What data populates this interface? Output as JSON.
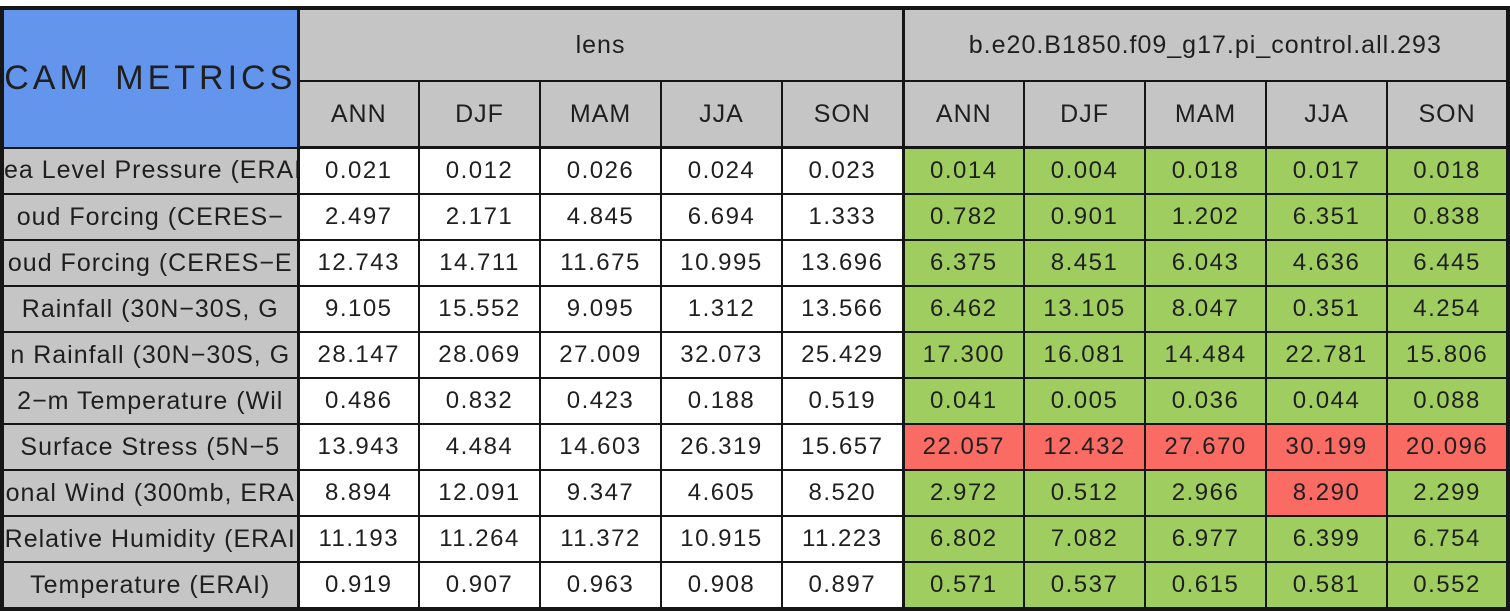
{
  "colors": {
    "title_bg": "#6495ED",
    "header_bg": "#C5C5C5",
    "better": "#9FCD60",
    "worse": "#FA6B63",
    "lens_bg": "#FFFFFF",
    "grid": "#161616"
  },
  "chart_data": {
    "type": "table",
    "title": "CAM METRICS",
    "column_groups": [
      "lens",
      "b.e20.B1850.f09_g17.pi_control.all.293"
    ],
    "seasons": [
      "ANN",
      "DJF",
      "MAM",
      "JJA",
      "SON"
    ],
    "rows": [
      {
        "label": "ea Level Pressure (ERAI",
        "lens": [
          "0.021",
          "0.012",
          "0.026",
          "0.024",
          "0.023"
        ],
        "model": [
          "0.014",
          "0.004",
          "0.018",
          "0.017",
          "0.018"
        ],
        "model_status": [
          "better",
          "better",
          "better",
          "better",
          "better"
        ]
      },
      {
        "label": "oud Forcing (CERES−",
        "lens": [
          "2.497",
          "2.171",
          "4.845",
          "6.694",
          "1.333"
        ],
        "model": [
          "0.782",
          "0.901",
          "1.202",
          "6.351",
          "0.838"
        ],
        "model_status": [
          "better",
          "better",
          "better",
          "better",
          "better"
        ]
      },
      {
        "label": "oud Forcing (CERES−E",
        "lens": [
          "12.743",
          "14.711",
          "11.675",
          "10.995",
          "13.696"
        ],
        "model": [
          "6.375",
          "8.451",
          "6.043",
          "4.636",
          "6.445"
        ],
        "model_status": [
          "better",
          "better",
          "better",
          "better",
          "better"
        ]
      },
      {
        "label": "Rainfall (30N−30S, G",
        "lens": [
          "9.105",
          "15.552",
          "9.095",
          "1.312",
          "13.566"
        ],
        "model": [
          "6.462",
          "13.105",
          "8.047",
          "0.351",
          "4.254"
        ],
        "model_status": [
          "better",
          "better",
          "better",
          "better",
          "better"
        ]
      },
      {
        "label": "n Rainfall (30N−30S, G",
        "lens": [
          "28.147",
          "28.069",
          "27.009",
          "32.073",
          "25.429"
        ],
        "model": [
          "17.300",
          "16.081",
          "14.484",
          "22.781",
          "15.806"
        ],
        "model_status": [
          "better",
          "better",
          "better",
          "better",
          "better"
        ]
      },
      {
        "label": "2−m Temperature (Wil",
        "lens": [
          "0.486",
          "0.832",
          "0.423",
          "0.188",
          "0.519"
        ],
        "model": [
          "0.041",
          "0.005",
          "0.036",
          "0.044",
          "0.088"
        ],
        "model_status": [
          "better",
          "better",
          "better",
          "better",
          "better"
        ]
      },
      {
        "label": "Surface Stress (5N−5",
        "lens": [
          "13.943",
          "4.484",
          "14.603",
          "26.319",
          "15.657"
        ],
        "model": [
          "22.057",
          "12.432",
          "27.670",
          "30.199",
          "20.096"
        ],
        "model_status": [
          "worse",
          "worse",
          "worse",
          "worse",
          "worse"
        ]
      },
      {
        "label": "onal Wind (300mb, ERA",
        "lens": [
          "8.894",
          "12.091",
          "9.347",
          "4.605",
          "8.520"
        ],
        "model": [
          "2.972",
          "0.512",
          "2.966",
          "8.290",
          "2.299"
        ],
        "model_status": [
          "better",
          "better",
          "better",
          "worse",
          "better"
        ]
      },
      {
        "label": "Relative Humidity (ERAI",
        "lens": [
          "11.193",
          "11.264",
          "11.372",
          "10.915",
          "11.223"
        ],
        "model": [
          "6.802",
          "7.082",
          "6.977",
          "6.399",
          "6.754"
        ],
        "model_status": [
          "better",
          "better",
          "better",
          "better",
          "better"
        ]
      },
      {
        "label": "Temperature (ERAI)",
        "lens": [
          "0.919",
          "0.907",
          "0.963",
          "0.908",
          "0.897"
        ],
        "model": [
          "0.571",
          "0.537",
          "0.615",
          "0.581",
          "0.552"
        ],
        "model_status": [
          "better",
          "better",
          "better",
          "better",
          "better"
        ]
      }
    ]
  }
}
